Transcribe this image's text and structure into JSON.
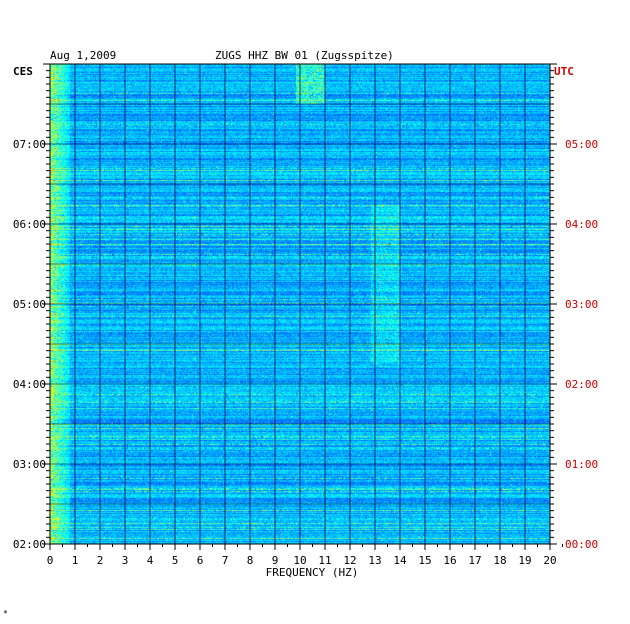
{
  "header": {
    "date": "Aug 1,2009",
    "station": "ZUGS HHZ BW 01 (Zugsspitze)",
    "left_zone": "CES",
    "right_zone": "UTC"
  },
  "chart_data": {
    "type": "heatmap",
    "title": "ZUGS HHZ BW 01 (Zugsspitze)",
    "date": "Aug 1,2009",
    "xlabel": "FREQUENCY (HZ)",
    "xlim": [
      0,
      20
    ],
    "x_ticks": [
      "0",
      "1",
      "2",
      "3",
      "4",
      "5",
      "6",
      "7",
      "8",
      "9",
      "10",
      "11",
      "12",
      "13",
      "14",
      "15",
      "16",
      "17",
      "18",
      "19",
      "20"
    ],
    "left_axis": {
      "label": "CES",
      "range_hours": [
        2.0,
        8.0
      ],
      "ticks": [
        {
          "hour": 7,
          "label": "07:00"
        },
        {
          "hour": 6,
          "label": "06:00"
        },
        {
          "hour": 5,
          "label": "05:00"
        },
        {
          "hour": 4,
          "label": "04:00"
        },
        {
          "hour": 3,
          "label": "03:00"
        },
        {
          "hour": 2,
          "label": "02:00"
        }
      ]
    },
    "right_axis": {
      "label": "UTC",
      "color": "#cc0000",
      "ticks": [
        {
          "hour": 7,
          "label": "05:00"
        },
        {
          "hour": 6,
          "label": "04:00"
        },
        {
          "hour": 5,
          "label": "03:00"
        },
        {
          "hour": 4,
          "label": "02:00"
        },
        {
          "hour": 3,
          "label": "01:00"
        },
        {
          "hour": 2,
          "label": "00:00"
        }
      ]
    },
    "colormap": [
      "#00007f",
      "#0000ff",
      "#007fff",
      "#00ffff",
      "#7fff7f",
      "#ffff00",
      "#ff7f00",
      "#ff0000"
    ],
    "grid": true
  },
  "footer_mark": "*"
}
